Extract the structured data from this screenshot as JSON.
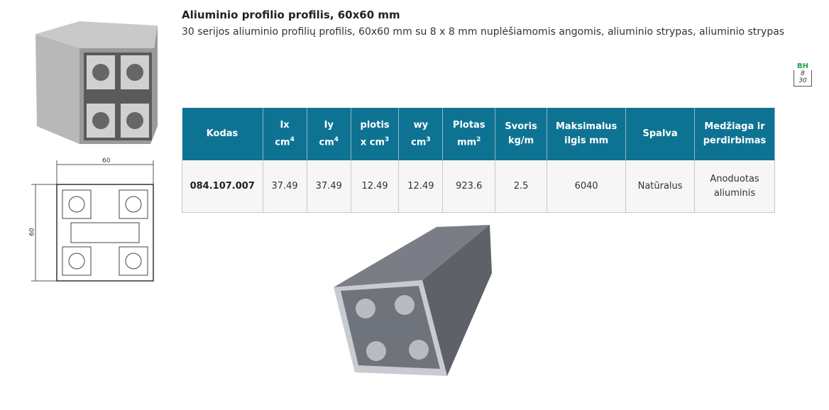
{
  "product": {
    "title": "Aliuminio profilio profilis, 60x60 mm",
    "description": "30 serijos aliuminio profilių profilis, 60x60 mm su 8 x 8 mm nuplėšiamomis angomis, aliuminio strypas, aliuminio strypas"
  },
  "badge": {
    "top": "BH",
    "middle": "8",
    "bottom": "30",
    "color": "#1aa34a"
  },
  "drawing": {
    "width_label": "60",
    "height_label": "60"
  },
  "table": {
    "header_color": "#0e7393",
    "headers": [
      {
        "l1": "Kodas"
      },
      {
        "l1": "Ix",
        "l2": "cm",
        "sup": "4"
      },
      {
        "l1": "Iy",
        "l2": "cm",
        "sup": "4"
      },
      {
        "l1": "plotis",
        "l2": "x cm",
        "sup": "3"
      },
      {
        "l1": "wy",
        "l2": "cm",
        "sup": "3"
      },
      {
        "l1": "Plotas",
        "l2": "mm",
        "sup": "2"
      },
      {
        "l1": "Svoris",
        "l2": "kg/m"
      },
      {
        "l1": "Maksimalus",
        "l2": "ilgis mm"
      },
      {
        "l1": "Spalva"
      },
      {
        "l1": "Medžiaga ir",
        "l2": "perdirbimas"
      }
    ],
    "row": [
      "084.107.007",
      "37.49",
      "37.49",
      "12.49",
      "12.49",
      "923.6",
      "2.5",
      "6040",
      "Natūralus",
      "Anoduotas aliuminis"
    ]
  }
}
